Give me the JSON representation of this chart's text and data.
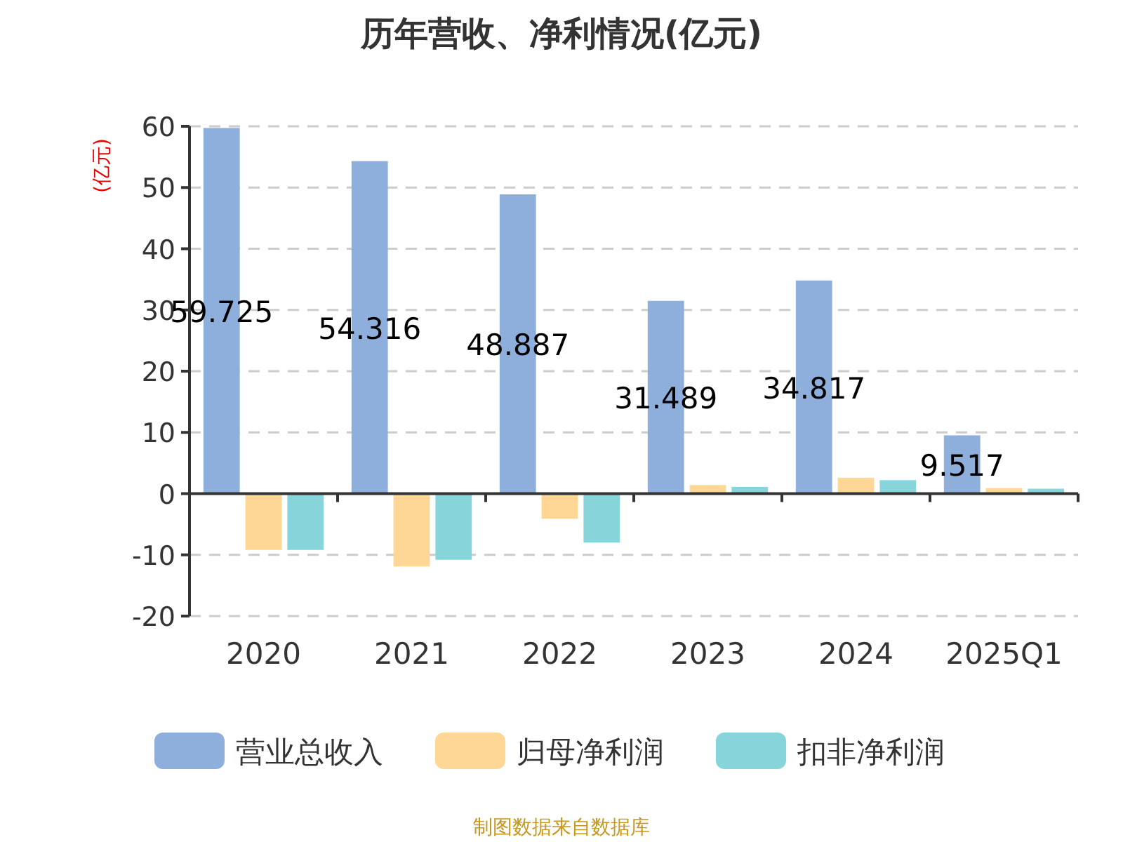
{
  "chart_data": {
    "type": "bar",
    "title": "历年营收、净利情况(亿元)",
    "ylabel": "(亿元)",
    "categories": [
      "2020",
      "2021",
      "2022",
      "2023",
      "2024",
      "2025Q1"
    ],
    "series": [
      {
        "name": "营业总收入",
        "color": "#8eaedb",
        "values": [
          59.725,
          54.316,
          48.887,
          31.489,
          34.817,
          9.517
        ],
        "value_labels": [
          "59.725",
          "54.316",
          "48.887",
          "31.489",
          "34.817",
          "9.517"
        ]
      },
      {
        "name": "归母净利润",
        "color": "#fed797",
        "values": [
          -9.2,
          -11.9,
          -4.1,
          1.4,
          2.6,
          0.9
        ]
      },
      {
        "name": "扣非净利润",
        "color": "#87d5da",
        "values": [
          -9.2,
          -10.8,
          -8.0,
          1.1,
          2.2,
          0.8
        ]
      }
    ],
    "ylim": [
      -20,
      60
    ],
    "yticks": [
      -20,
      -10,
      0,
      10,
      20,
      30,
      40,
      50,
      60
    ],
    "grid": "y",
    "legend": "bottom",
    "annotations": [
      "制图数据来自数据库"
    ]
  }
}
